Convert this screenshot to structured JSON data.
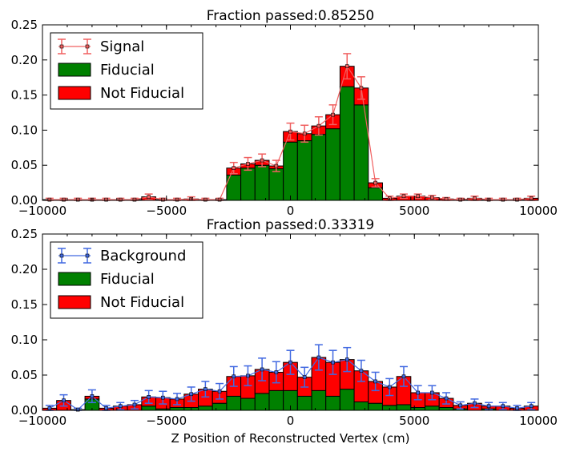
{
  "chart_data": [
    {
      "type": "bar",
      "title": "Fraction passed:0.85250",
      "xlabel": "",
      "ylabel": "",
      "xlim": [
        -10000,
        10000
      ],
      "ylim": [
        0,
        0.25
      ],
      "xticks": [
        "−10000",
        "−5000",
        "0",
        "5000",
        "10000"
      ],
      "yticks": [
        "0.00",
        "0.05",
        "0.10",
        "0.15",
        "0.20",
        "0.25"
      ],
      "bin_width": 571.43,
      "x": [
        -9714,
        -9143,
        -8571,
        -8000,
        -7429,
        -6857,
        -6286,
        -5714,
        -5143,
        -4571,
        -4000,
        -3429,
        -2857,
        -2286,
        -1714,
        -1143,
        -571,
        0,
        571,
        1143,
        1714,
        2286,
        2857,
        3429,
        4000,
        4571,
        5143,
        5714,
        6286,
        6857,
        7429,
        8000,
        8571,
        9143,
        9714
      ],
      "legend_position": "top-left",
      "series": [
        {
          "name": "Signal",
          "style": "errorbar",
          "color": "#f06060",
          "values": [
            0.001,
            0.001,
            0.001,
            0.001,
            0.001,
            0.001,
            0.001,
            0.005,
            0.001,
            0.001,
            0.002,
            0.001,
            0.001,
            0.046,
            0.052,
            0.057,
            0.049,
            0.098,
            0.095,
            0.106,
            0.122,
            0.191,
            0.16,
            0.025,
            0.003,
            0.006,
            0.006,
            0.004,
            0.002,
            0.001,
            0.003,
            0.001,
            0.001,
            0.001,
            0.003
          ],
          "errors": [
            0.002,
            0.002,
            0.002,
            0.002,
            0.002,
            0.002,
            0.002,
            0.004,
            0.002,
            0.002,
            0.003,
            0.002,
            0.002,
            0.008,
            0.009,
            0.009,
            0.008,
            0.012,
            0.012,
            0.013,
            0.014,
            0.018,
            0.016,
            0.006,
            0.003,
            0.003,
            0.003,
            0.003,
            0.002,
            0.002,
            0.003,
            0.002,
            0.002,
            0.002,
            0.003
          ]
        },
        {
          "name": "Fiducial",
          "style": "bar",
          "color": "#008000",
          "values": [
            0,
            0,
            0,
            0,
            0,
            0,
            0,
            0,
            0,
            0,
            0,
            0,
            0,
            0.036,
            0.046,
            0.05,
            0.045,
            0.083,
            0.085,
            0.094,
            0.102,
            0.162,
            0.136,
            0.018,
            0,
            0,
            0,
            0,
            0,
            0,
            0,
            0,
            0,
            0,
            0
          ]
        },
        {
          "name": "Not Fiducial",
          "style": "bar",
          "color": "#ff0000",
          "values": [
            0.001,
            0.001,
            0.001,
            0.001,
            0.001,
            0.001,
            0.001,
            0.005,
            0.001,
            0.001,
            0.002,
            0.001,
            0.001,
            0.01,
            0.006,
            0.007,
            0.004,
            0.015,
            0.01,
            0.012,
            0.02,
            0.029,
            0.024,
            0.007,
            0.003,
            0.006,
            0.006,
            0.004,
            0.002,
            0.001,
            0.003,
            0.001,
            0.001,
            0.001,
            0.003
          ]
        }
      ]
    },
    {
      "type": "bar",
      "title": "Fraction passed:0.33319",
      "xlabel": "Z Position of Reconstructed Vertex (cm)",
      "ylabel": "",
      "xlim": [
        -10000,
        10000
      ],
      "ylim": [
        0,
        0.25
      ],
      "xticks": [
        "−10000",
        "−5000",
        "0",
        "5000",
        "10000"
      ],
      "yticks": [
        "0.00",
        "0.05",
        "0.10",
        "0.15",
        "0.20",
        "0.25"
      ],
      "bin_width": 571.43,
      "x": [
        -9714,
        -9143,
        -8571,
        -8000,
        -7429,
        -6857,
        -6286,
        -5714,
        -5143,
        -4571,
        -4000,
        -3429,
        -2857,
        -2286,
        -1714,
        -1143,
        -571,
        0,
        571,
        1143,
        1714,
        2286,
        2857,
        3429,
        4000,
        4571,
        5143,
        5714,
        6286,
        6857,
        7429,
        8000,
        8571,
        9143,
        9714
      ],
      "legend_position": "top-left",
      "series": [
        {
          "name": "Background",
          "style": "errorbar",
          "color": "#4169e1",
          "values": [
            0.003,
            0.014,
            0.001,
            0.02,
            0.003,
            0.006,
            0.008,
            0.019,
            0.018,
            0.016,
            0.023,
            0.03,
            0.027,
            0.048,
            0.049,
            0.058,
            0.054,
            0.068,
            0.047,
            0.075,
            0.068,
            0.072,
            0.056,
            0.041,
            0.033,
            0.048,
            0.025,
            0.025,
            0.017,
            0.007,
            0.01,
            0.006,
            0.006,
            0.003,
            0.006
          ],
          "errors": [
            0.004,
            0.008,
            0.002,
            0.009,
            0.004,
            0.005,
            0.006,
            0.009,
            0.009,
            0.008,
            0.01,
            0.011,
            0.011,
            0.014,
            0.014,
            0.016,
            0.015,
            0.017,
            0.014,
            0.018,
            0.017,
            0.017,
            0.015,
            0.013,
            0.012,
            0.014,
            0.01,
            0.01,
            0.008,
            0.005,
            0.006,
            0.005,
            0.005,
            0.004,
            0.005
          ]
        },
        {
          "name": "Fiducial",
          "style": "bar",
          "color": "#008000",
          "values": [
            0,
            0,
            0,
            0.016,
            0,
            0,
            0,
            0.006,
            0.002,
            0.004,
            0.004,
            0.006,
            0.01,
            0.02,
            0.017,
            0.024,
            0.028,
            0.028,
            0.02,
            0.028,
            0.02,
            0.03,
            0.012,
            0.01,
            0.007,
            0.008,
            0.004,
            0.006,
            0.004,
            0.002,
            0,
            0.002,
            0,
            0,
            0
          ]
        },
        {
          "name": "Not Fiducial",
          "style": "bar",
          "color": "#ff0000",
          "values": [
            0.003,
            0.014,
            0.001,
            0.004,
            0.003,
            0.006,
            0.008,
            0.013,
            0.016,
            0.012,
            0.019,
            0.024,
            0.017,
            0.028,
            0.032,
            0.034,
            0.026,
            0.04,
            0.027,
            0.047,
            0.048,
            0.042,
            0.044,
            0.031,
            0.026,
            0.04,
            0.021,
            0.019,
            0.013,
            0.005,
            0.01,
            0.004,
            0.006,
            0.003,
            0.006
          ]
        }
      ]
    }
  ]
}
